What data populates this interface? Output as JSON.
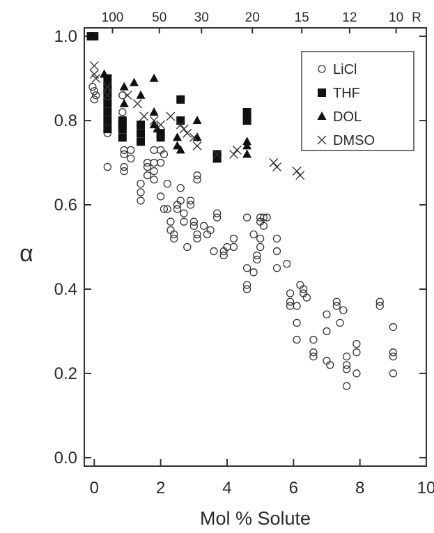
{
  "chart_data": {
    "type": "scatter",
    "xlabel": "Mol % Solute",
    "ylabel": "α",
    "xlim": [
      -0.3,
      10
    ],
    "ylim": [
      -0.02,
      1.02
    ],
    "x_ticks": [
      "0",
      "2",
      "4",
      "6",
      "8",
      "10"
    ],
    "y_ticks": [
      "0.0",
      "0.2",
      "0.4",
      "0.6",
      "0.8",
      "1.0"
    ],
    "top_axis": {
      "ticks": [
        {
          "label": "100",
          "x": 0.55
        },
        {
          "label": "50",
          "x": 1.96
        },
        {
          "label": "30",
          "x": 3.23
        },
        {
          "label": "20",
          "x": 4.76
        },
        {
          "label": "15",
          "x": 6.25
        },
        {
          "label": "12",
          "x": 7.69
        },
        {
          "label": "10",
          "x": 9.09
        }
      ],
      "end_label": "R"
    },
    "legend": {
      "placement": "top-right"
    },
    "series": [
      {
        "name": "LiCl",
        "marker": "circle-open",
        "points": [
          [
            -0.05,
            0.88
          ],
          [
            0,
            0.87
          ],
          [
            0.05,
            0.86
          ],
          [
            0,
            0.85
          ],
          [
            0.4,
            0.85
          ],
          [
            0.4,
            0.8
          ],
          [
            0.4,
            0.79
          ],
          [
            0.4,
            0.78
          ],
          [
            0.4,
            0.77
          ],
          [
            0.4,
            0.69
          ],
          [
            0.85,
            0.86
          ],
          [
            0.85,
            0.82
          ],
          [
            0.85,
            0.78
          ],
          [
            0.9,
            0.73
          ],
          [
            0.9,
            0.72
          ],
          [
            0.9,
            0.69
          ],
          [
            0.9,
            0.68
          ],
          [
            1.1,
            0.73
          ],
          [
            1.1,
            0.71
          ],
          [
            1.4,
            0.65
          ],
          [
            1.4,
            0.63
          ],
          [
            1.4,
            0.61
          ],
          [
            1.6,
            0.7
          ],
          [
            1.6,
            0.69
          ],
          [
            1.6,
            0.67
          ],
          [
            1.8,
            0.73
          ],
          [
            1.8,
            0.7
          ],
          [
            1.8,
            0.68
          ],
          [
            1.8,
            0.66
          ],
          [
            2,
            0.76
          ],
          [
            2,
            0.73
          ],
          [
            2,
            0.7
          ],
          [
            2,
            0.62
          ],
          [
            2.1,
            0.72
          ],
          [
            2.2,
            0.65
          ],
          [
            2.1,
            0.59
          ],
          [
            2.2,
            0.59
          ],
          [
            2.3,
            0.56
          ],
          [
            2.3,
            0.54
          ],
          [
            2.4,
            0.53
          ],
          [
            2.4,
            0.52
          ],
          [
            2.5,
            0.6
          ],
          [
            2.5,
            0.59
          ],
          [
            2.6,
            0.64
          ],
          [
            2.6,
            0.61
          ],
          [
            2.7,
            0.58
          ],
          [
            2.7,
            0.56
          ],
          [
            2.8,
            0.5
          ],
          [
            2.9,
            0.61
          ],
          [
            2.9,
            0.6
          ],
          [
            3,
            0.56
          ],
          [
            3,
            0.55
          ],
          [
            3.1,
            0.53
          ],
          [
            3.1,
            0.52
          ],
          [
            3.1,
            0.67
          ],
          [
            3.1,
            0.66
          ],
          [
            3.3,
            0.55
          ],
          [
            3.4,
            0.53
          ],
          [
            3.5,
            0.54
          ],
          [
            3.6,
            0.49
          ],
          [
            3.7,
            0.58
          ],
          [
            3.7,
            0.57
          ],
          [
            3.9,
            0.49
          ],
          [
            3.9,
            0.48
          ],
          [
            4,
            0.5
          ],
          [
            4.2,
            0.52
          ],
          [
            4.2,
            0.5
          ],
          [
            4.6,
            0.57
          ],
          [
            4.6,
            0.45
          ],
          [
            4.6,
            0.41
          ],
          [
            4.6,
            0.4
          ],
          [
            4.8,
            0.53
          ],
          [
            4.8,
            0.44
          ],
          [
            4.9,
            0.48
          ],
          [
            4.9,
            0.47
          ],
          [
            5,
            0.57
          ],
          [
            5,
            0.56
          ],
          [
            5,
            0.52
          ],
          [
            5,
            0.5
          ],
          [
            5.1,
            0.57
          ],
          [
            5.1,
            0.55
          ],
          [
            5.2,
            0.57
          ],
          [
            5.5,
            0.52
          ],
          [
            5.5,
            0.49
          ],
          [
            5.5,
            0.45
          ],
          [
            5.8,
            0.46
          ],
          [
            5.9,
            0.39
          ],
          [
            5.9,
            0.37
          ],
          [
            5.9,
            0.36
          ],
          [
            6.1,
            0.36
          ],
          [
            6.1,
            0.32
          ],
          [
            6.1,
            0.28
          ],
          [
            6.2,
            0.41
          ],
          [
            6.3,
            0.4
          ],
          [
            6.3,
            0.39
          ],
          [
            6.4,
            0.38
          ],
          [
            6.6,
            0.28
          ],
          [
            6.6,
            0.25
          ],
          [
            6.6,
            0.24
          ],
          [
            7,
            0.34
          ],
          [
            7,
            0.3
          ],
          [
            7,
            0.23
          ],
          [
            7.1,
            0.22
          ],
          [
            7.3,
            0.37
          ],
          [
            7.3,
            0.36
          ],
          [
            7.4,
            0.32
          ],
          [
            7.5,
            0.35
          ],
          [
            7.6,
            0.24
          ],
          [
            7.6,
            0.22
          ],
          [
            7.6,
            0.21
          ],
          [
            7.6,
            0.17
          ],
          [
            7.9,
            0.27
          ],
          [
            7.9,
            0.25
          ],
          [
            7.9,
            0.2
          ],
          [
            8.6,
            0.37
          ],
          [
            8.6,
            0.36
          ],
          [
            9,
            0.31
          ],
          [
            9,
            0.25
          ],
          [
            9,
            0.24
          ],
          [
            9,
            0.2
          ]
        ]
      },
      {
        "name": "THF",
        "marker": "square-filled",
        "points": [
          [
            -0.1,
            1
          ],
          [
            0,
            1
          ],
          [
            0.4,
            0.9
          ],
          [
            0.4,
            0.88
          ],
          [
            0.4,
            0.86
          ],
          [
            0.4,
            0.84
          ],
          [
            0.4,
            0.82
          ],
          [
            0.4,
            0.8
          ],
          [
            0.4,
            0.78
          ],
          [
            0.85,
            0.8
          ],
          [
            0.85,
            0.79
          ],
          [
            0.85,
            0.78
          ],
          [
            0.85,
            0.76
          ],
          [
            1.4,
            0.79
          ],
          [
            1.4,
            0.77
          ],
          [
            1.4,
            0.75
          ],
          [
            2,
            0.77
          ],
          [
            2,
            0.76
          ],
          [
            2.6,
            0.85
          ],
          [
            2.6,
            0.8
          ],
          [
            3.7,
            0.72
          ],
          [
            3.7,
            0.71
          ],
          [
            4.6,
            0.82
          ],
          [
            4.6,
            0.81
          ],
          [
            4.6,
            0.8
          ]
        ]
      },
      {
        "name": "DOL",
        "marker": "triangle-filled",
        "points": [
          [
            0.3,
            0.91
          ],
          [
            0.4,
            0.89
          ],
          [
            0.9,
            0.88
          ],
          [
            0.9,
            0.84
          ],
          [
            1.2,
            0.89
          ],
          [
            1.4,
            0.86
          ],
          [
            1.8,
            0.9
          ],
          [
            1.8,
            0.82
          ],
          [
            1.8,
            0.79
          ],
          [
            1.9,
            0.78
          ],
          [
            2.5,
            0.76
          ],
          [
            2.5,
            0.74
          ],
          [
            2.6,
            0.73
          ],
          [
            3.1,
            0.8
          ],
          [
            3.1,
            0.76
          ],
          [
            3.7,
            0.71
          ],
          [
            4.6,
            0.75
          ],
          [
            4.6,
            0.74
          ],
          [
            4.6,
            0.72
          ]
        ]
      },
      {
        "name": "DMSO",
        "marker": "cross",
        "points": [
          [
            0,
            0.93
          ],
          [
            0,
            0.91
          ],
          [
            0.05,
            0.9
          ],
          [
            0.4,
            0.88
          ],
          [
            0.4,
            0.86
          ],
          [
            1,
            0.86
          ],
          [
            1.3,
            0.84
          ],
          [
            1.5,
            0.81
          ],
          [
            1.8,
            0.8
          ],
          [
            2,
            0.79
          ],
          [
            2.3,
            0.81
          ],
          [
            2.6,
            0.79
          ],
          [
            2.7,
            0.78
          ],
          [
            2.8,
            0.77
          ],
          [
            3,
            0.76
          ],
          [
            3.1,
            0.74
          ],
          [
            3.7,
            0.72
          ],
          [
            4.2,
            0.72
          ],
          [
            4.3,
            0.73
          ],
          [
            5.4,
            0.7
          ],
          [
            5.5,
            0.69
          ],
          [
            6.1,
            0.68
          ],
          [
            6.2,
            0.67
          ]
        ]
      }
    ]
  }
}
